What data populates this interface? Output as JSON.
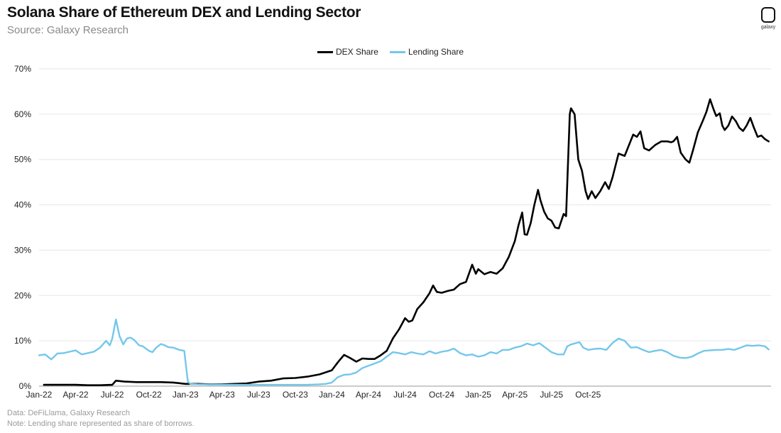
{
  "header": {
    "title": "Solana Share of Ethereum DEX and Lending Sector",
    "subtitle": "Source: Galaxy Research",
    "logo_text": "galaxy"
  },
  "footer": {
    "data_note": "Data: DeFiLlama, Galaxy Research",
    "note": "Note: Lending share represented as share of borrows."
  },
  "colors": {
    "dex": "#000000",
    "lending": "#74C7EC",
    "grid": "#e6e6e6"
  },
  "chart_data": {
    "type": "line",
    "title": "Solana Share of Ethereum DEX and Lending Sector",
    "xlabel": "",
    "ylabel": "",
    "ylim": [
      0,
      70
    ],
    "yticks": [
      "0%",
      "10%",
      "20%",
      "30%",
      "40%",
      "50%",
      "60%",
      "70%"
    ],
    "xticks": [
      "Jan-22",
      "Apr-22",
      "Jul-22",
      "Oct-22",
      "Jan-23",
      "Apr-23",
      "Jul-23",
      "Oct-23",
      "Jan-24",
      "Apr-24",
      "Jul-24",
      "Oct-24",
      "Jan-25",
      "Apr-25",
      "Jul-25",
      "Oct-25"
    ],
    "grid": true,
    "legend_position": "top-center",
    "x_unit": "months since Jan-22",
    "series": [
      {
        "name": "DEX Share",
        "color": "#000000",
        "points": [
          [
            0.4,
            0.3
          ],
          [
            2,
            0.3
          ],
          [
            3,
            0.3
          ],
          [
            4,
            0.2
          ],
          [
            5,
            0.2
          ],
          [
            6,
            0.3
          ],
          [
            6.3,
            1.2
          ],
          [
            7,
            1.0
          ],
          [
            8,
            0.9
          ],
          [
            9,
            0.9
          ],
          [
            10,
            0.9
          ],
          [
            11,
            0.8
          ],
          [
            12,
            0.5
          ],
          [
            13,
            0.5
          ],
          [
            14,
            0.4
          ],
          [
            15,
            0.4
          ],
          [
            16,
            0.5
          ],
          [
            17,
            0.6
          ],
          [
            18,
            1.0
          ],
          [
            19,
            1.2
          ],
          [
            20,
            1.7
          ],
          [
            21,
            1.8
          ],
          [
            22,
            2.1
          ],
          [
            23,
            2.6
          ],
          [
            24,
            3.5
          ],
          [
            24.5,
            5.3
          ],
          [
            25,
            6.9
          ],
          [
            25.5,
            6.2
          ],
          [
            26,
            5.4
          ],
          [
            26.5,
            6.1
          ],
          [
            27,
            6.0
          ],
          [
            27.5,
            6.0
          ],
          [
            28,
            6.8
          ],
          [
            28.5,
            7.8
          ],
          [
            29,
            10.5
          ],
          [
            29.5,
            12.5
          ],
          [
            30,
            15.0
          ],
          [
            30.3,
            14.2
          ],
          [
            30.6,
            14.5
          ],
          [
            31,
            17.0
          ],
          [
            31.5,
            18.5
          ],
          [
            32,
            20.5
          ],
          [
            32.3,
            22.2
          ],
          [
            32.6,
            20.8
          ],
          [
            33,
            20.6
          ],
          [
            33.5,
            21.0
          ],
          [
            34,
            21.3
          ],
          [
            34.5,
            22.5
          ],
          [
            35,
            23.0
          ],
          [
            35.5,
            26.8
          ],
          [
            35.8,
            24.8
          ],
          [
            36,
            25.8
          ],
          [
            36.5,
            24.7
          ],
          [
            37,
            25.2
          ],
          [
            37.5,
            24.8
          ],
          [
            38,
            26.0
          ],
          [
            38.5,
            28.5
          ],
          [
            39,
            32.0
          ],
          [
            39.3,
            35.5
          ],
          [
            39.6,
            38.3
          ],
          [
            39.8,
            33.5
          ],
          [
            40,
            33.4
          ],
          [
            40.3,
            36.0
          ],
          [
            40.6,
            40.0
          ],
          [
            40.9,
            43.3
          ],
          [
            41.1,
            41.0
          ],
          [
            41.4,
            38.5
          ],
          [
            41.7,
            37.0
          ],
          [
            42,
            36.5
          ],
          [
            42.3,
            35.0
          ],
          [
            42.6,
            34.8
          ],
          [
            43,
            38.0
          ],
          [
            43.2,
            37.5
          ],
          [
            43.5,
            60.0
          ],
          [
            43.6,
            61.3
          ],
          [
            43.9,
            60.0
          ],
          [
            44.2,
            50.0
          ],
          [
            44.5,
            47.5
          ],
          [
            44.8,
            43.0
          ],
          [
            45,
            41.3
          ],
          [
            45.3,
            43.0
          ],
          [
            45.6,
            41.5
          ],
          [
            46,
            43.0
          ],
          [
            46.4,
            45.0
          ],
          [
            46.7,
            43.5
          ],
          [
            47,
            46.0
          ],
          [
            47.5,
            51.3
          ],
          [
            48,
            50.8
          ],
          [
            48.4,
            53.5
          ],
          [
            48.7,
            55.5
          ],
          [
            49,
            55.0
          ],
          [
            49.3,
            56.2
          ],
          [
            49.6,
            52.5
          ],
          [
            50,
            52.0
          ],
          [
            50.5,
            53.2
          ],
          [
            51,
            54.0
          ],
          [
            51.5,
            54.0
          ],
          [
            51.8,
            53.8
          ],
          [
            52,
            54.0
          ],
          [
            52.3,
            55.0
          ],
          [
            52.6,
            51.5
          ],
          [
            53,
            50.0
          ],
          [
            53.3,
            49.3
          ],
          [
            53.6,
            52.0
          ],
          [
            54,
            56.0
          ],
          [
            54.4,
            58.5
          ],
          [
            54.7,
            60.5
          ],
          [
            55,
            63.3
          ],
          [
            55.3,
            61.0
          ],
          [
            55.5,
            59.6
          ],
          [
            55.8,
            60.2
          ],
          [
            56,
            57.5
          ],
          [
            56.2,
            56.5
          ],
          [
            56.5,
            57.5
          ],
          [
            56.8,
            59.5
          ],
          [
            57.1,
            58.5
          ],
          [
            57.4,
            57.0
          ],
          [
            57.7,
            56.3
          ],
          [
            58,
            57.5
          ],
          [
            58.3,
            59.2
          ],
          [
            58.6,
            57.0
          ],
          [
            58.9,
            55.0
          ],
          [
            59.2,
            55.3
          ],
          [
            59.5,
            54.5
          ],
          [
            59.8,
            54.0
          ]
        ]
      },
      {
        "name": "Lending Share",
        "color": "#74C7EC",
        "points": [
          [
            0,
            6.8
          ],
          [
            0.5,
            7.0
          ],
          [
            1,
            5.9
          ],
          [
            1.5,
            7.2
          ],
          [
            2,
            7.3
          ],
          [
            2.5,
            7.6
          ],
          [
            3,
            7.9
          ],
          [
            3.5,
            7.0
          ],
          [
            4,
            7.3
          ],
          [
            4.5,
            7.6
          ],
          [
            5,
            8.5
          ],
          [
            5.5,
            10.0
          ],
          [
            5.8,
            9.0
          ],
          [
            6,
            10.5
          ],
          [
            6.3,
            14.7
          ],
          [
            6.6,
            11.0
          ],
          [
            6.9,
            9.2
          ],
          [
            7.2,
            10.5
          ],
          [
            7.5,
            10.7
          ],
          [
            7.8,
            10.2
          ],
          [
            8.2,
            9.0
          ],
          [
            8.5,
            8.8
          ],
          [
            9,
            7.8
          ],
          [
            9.3,
            7.5
          ],
          [
            9.6,
            8.5
          ],
          [
            10,
            9.3
          ],
          [
            10.3,
            9.0
          ],
          [
            10.6,
            8.6
          ],
          [
            11,
            8.5
          ],
          [
            11.5,
            8.0
          ],
          [
            11.9,
            7.8
          ],
          [
            12.2,
            1.0
          ],
          [
            12.4,
            0.5
          ],
          [
            13,
            0.4
          ],
          [
            16,
            0.3
          ],
          [
            19,
            0.3
          ],
          [
            21,
            0.3
          ],
          [
            22,
            0.3
          ],
          [
            23,
            0.4
          ],
          [
            23.5,
            0.5
          ],
          [
            24,
            0.8
          ],
          [
            24.5,
            2.0
          ],
          [
            25,
            2.5
          ],
          [
            25.5,
            2.6
          ],
          [
            26,
            3.0
          ],
          [
            26.5,
            4.0
          ],
          [
            27,
            4.5
          ],
          [
            27.5,
            5.0
          ],
          [
            28,
            5.5
          ],
          [
            28.5,
            6.5
          ],
          [
            29,
            7.5
          ],
          [
            29.5,
            7.3
          ],
          [
            30,
            7.0
          ],
          [
            30.5,
            7.5
          ],
          [
            31,
            7.2
          ],
          [
            31.5,
            7.0
          ],
          [
            32,
            7.7
          ],
          [
            32.5,
            7.2
          ],
          [
            33,
            7.6
          ],
          [
            33.5,
            7.8
          ],
          [
            34,
            8.3
          ],
          [
            34.5,
            7.3
          ],
          [
            35,
            6.8
          ],
          [
            35.5,
            7.0
          ],
          [
            36,
            6.5
          ],
          [
            36.5,
            6.8
          ],
          [
            37,
            7.5
          ],
          [
            37.5,
            7.2
          ],
          [
            38,
            8.0
          ],
          [
            38.5,
            8.0
          ],
          [
            39,
            8.5
          ],
          [
            39.5,
            8.8
          ],
          [
            40,
            9.4
          ],
          [
            40.5,
            9.0
          ],
          [
            41,
            9.5
          ],
          [
            41.5,
            8.5
          ],
          [
            42,
            7.5
          ],
          [
            42.5,
            7.0
          ],
          [
            43,
            7.0
          ],
          [
            43.3,
            8.8
          ],
          [
            43.6,
            9.2
          ],
          [
            44,
            9.5
          ],
          [
            44.3,
            9.7
          ],
          [
            44.6,
            8.5
          ],
          [
            45,
            8.0
          ],
          [
            45.5,
            8.2
          ],
          [
            46,
            8.3
          ],
          [
            46.5,
            8.0
          ],
          [
            47,
            9.5
          ],
          [
            47.5,
            10.5
          ],
          [
            48,
            10.0
          ],
          [
            48.5,
            8.5
          ],
          [
            49,
            8.6
          ],
          [
            49.5,
            8.0
          ],
          [
            50,
            7.5
          ],
          [
            50.5,
            7.8
          ],
          [
            51,
            8.0
          ],
          [
            51.5,
            7.5
          ],
          [
            52,
            6.7
          ],
          [
            52.5,
            6.3
          ],
          [
            53,
            6.2
          ],
          [
            53.5,
            6.5
          ],
          [
            54,
            7.2
          ],
          [
            54.5,
            7.8
          ],
          [
            55,
            7.9
          ],
          [
            55.5,
            8.0
          ],
          [
            56,
            8.0
          ],
          [
            56.5,
            8.2
          ],
          [
            57,
            8.0
          ],
          [
            57.5,
            8.5
          ],
          [
            58,
            9.0
          ],
          [
            58.5,
            8.9
          ],
          [
            59,
            9.0
          ],
          [
            59.5,
            8.8
          ],
          [
            59.8,
            8.1
          ]
        ]
      }
    ]
  }
}
